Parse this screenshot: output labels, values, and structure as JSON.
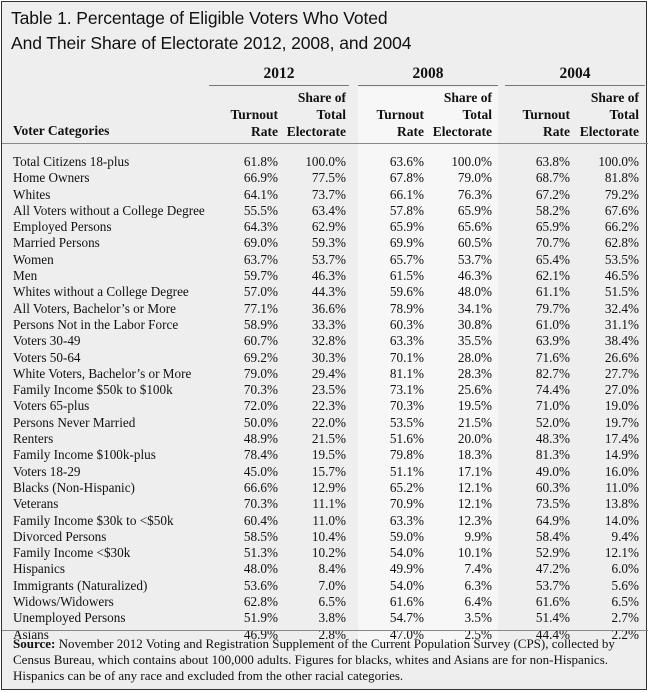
{
  "title": {
    "line1": "Table 1. Percentage of Eligible Voters Who Voted",
    "line2": "And Their Share of Electorate 2012, 2008, and 2004"
  },
  "years": [
    "2012",
    "2008",
    "2004"
  ],
  "col_headers": {
    "turnout_l1": "Turnout",
    "turnout_l2": "Rate",
    "share_l1": "Share of",
    "share_l2": "Total",
    "share_l3": "Electorate",
    "category": "Voter Categories"
  },
  "rows": [
    {
      "cat": "Total Citizens 18-plus",
      "v": [
        "61.8%",
        "100.0%",
        "63.6%",
        "100.0%",
        "63.8%",
        "100.0%"
      ]
    },
    {
      "cat": "Home Owners",
      "v": [
        "66.9%",
        "77.5%",
        "67.8%",
        "79.0%",
        "68.7%",
        "81.8%"
      ]
    },
    {
      "cat": "Whites",
      "v": [
        "64.1%",
        "73.7%",
        "66.1%",
        "76.3%",
        "67.2%",
        "79.2%"
      ]
    },
    {
      "cat": "All Voters without a College Degree",
      "v": [
        "55.5%",
        "63.4%",
        "57.8%",
        "65.9%",
        "58.2%",
        "67.6%"
      ]
    },
    {
      "cat": "Employed Persons",
      "v": [
        "64.3%",
        "62.9%",
        "65.9%",
        "65.6%",
        "65.9%",
        "66.2%"
      ]
    },
    {
      "cat": "Married Persons",
      "v": [
        "69.0%",
        "59.3%",
        "69.9%",
        "60.5%",
        "70.7%",
        "62.8%"
      ]
    },
    {
      "cat": "Women",
      "v": [
        "63.7%",
        "53.7%",
        "65.7%",
        "53.7%",
        "65.4%",
        "53.5%"
      ]
    },
    {
      "cat": "Men",
      "v": [
        "59.7%",
        "46.3%",
        "61.5%",
        "46.3%",
        "62.1%",
        "46.5%"
      ]
    },
    {
      "cat": "Whites without a College Degree",
      "v": [
        "57.0%",
        "44.3%",
        "59.6%",
        "48.0%",
        "61.1%",
        "51.5%"
      ]
    },
    {
      "cat": "All Voters, Bachelor’s or More",
      "v": [
        "77.1%",
        "36.6%",
        "78.9%",
        "34.1%",
        "79.7%",
        "32.4%"
      ]
    },
    {
      "cat": "Persons Not in the Labor Force",
      "v": [
        "58.9%",
        "33.3%",
        "60.3%",
        "30.8%",
        "61.0%",
        "31.1%"
      ]
    },
    {
      "cat": "Voters 30-49",
      "v": [
        "60.7%",
        "32.8%",
        "63.3%",
        "35.5%",
        "63.9%",
        "38.4%"
      ]
    },
    {
      "cat": "Voters 50-64",
      "v": [
        "69.2%",
        "30.3%",
        "70.1%",
        "28.0%",
        "71.6%",
        "26.6%"
      ]
    },
    {
      "cat": "White Voters, Bachelor’s or More",
      "v": [
        "79.0%",
        "29.4%",
        "81.1%",
        "28.3%",
        "82.7%",
        "27.7%"
      ]
    },
    {
      "cat": "Family Income $50k to $100k",
      "v": [
        "70.3%",
        "23.5%",
        "73.1%",
        "25.6%",
        "74.4%",
        "27.0%"
      ]
    },
    {
      "cat": "Voters 65-plus",
      "v": [
        "72.0%",
        "22.3%",
        "70.3%",
        "19.5%",
        "71.0%",
        "19.0%"
      ]
    },
    {
      "cat": "Persons Never Married",
      "v": [
        "50.0%",
        "22.0%",
        "53.5%",
        "21.5%",
        "52.0%",
        "19.7%"
      ]
    },
    {
      "cat": "Renters",
      "v": [
        "48.9%",
        "21.5%",
        "51.6%",
        "20.0%",
        "48.3%",
        "17.4%"
      ]
    },
    {
      "cat": "Family Income $100k-plus",
      "v": [
        "78.4%",
        "19.5%",
        "79.8%",
        "18.3%",
        "81.3%",
        "14.9%"
      ]
    },
    {
      "cat": "Voters 18-29",
      "v": [
        "45.0%",
        "15.7%",
        "51.1%",
        "17.1%",
        "49.0%",
        "16.0%"
      ]
    },
    {
      "cat": "Blacks (Non-Hispanic)",
      "v": [
        "66.6%",
        "12.9%",
        "65.2%",
        "12.1%",
        "60.3%",
        "11.0%"
      ]
    },
    {
      "cat": "Veterans",
      "v": [
        "70.3%",
        "11.1%",
        "70.9%",
        "12.1%",
        "73.5%",
        "13.8%"
      ]
    },
    {
      "cat": "Family Income $30k to <$50k",
      "v": [
        "60.4%",
        "11.0%",
        "63.3%",
        "12.3%",
        "64.9%",
        "14.0%"
      ]
    },
    {
      "cat": "Divorced Persons",
      "v": [
        "58.5%",
        "10.4%",
        "59.0%",
        "9.9%",
        "58.4%",
        "9.4%"
      ]
    },
    {
      "cat": "Family Income <$30k",
      "v": [
        "51.3%",
        "10.2%",
        "54.0%",
        "10.1%",
        "52.9%",
        "12.1%"
      ]
    },
    {
      "cat": "Hispanics",
      "v": [
        "48.0%",
        "8.4%",
        "49.9%",
        "7.4%",
        "47.2%",
        "6.0%"
      ]
    },
    {
      "cat": "Immigrants (Naturalized)",
      "v": [
        "53.6%",
        "7.0%",
        "54.0%",
        "6.3%",
        "53.7%",
        "5.6%"
      ]
    },
    {
      "cat": "Widows/Widowers",
      "v": [
        "62.8%",
        "6.5%",
        "61.6%",
        "6.4%",
        "61.6%",
        "6.5%"
      ]
    },
    {
      "cat": "Unemployed Persons",
      "v": [
        "51.9%",
        "3.8%",
        "54.7%",
        "3.5%",
        "51.4%",
        "2.7%"
      ]
    },
    {
      "cat": "Asians",
      "v": [
        "46.9%",
        "2.8%",
        "47.0%",
        "2.5%",
        "44.4%",
        "2.2%"
      ]
    }
  ],
  "source": {
    "label": "Source:",
    "text": " November 2012 Voting and Registration Supplement of the Current Population Survey (CPS), collected by Census Bureau, which contains about 100,000 adults. Figures for blacks, whites and Asians are for non-Hispanics. Hispanics can be of any race and excluded from the other racial categories."
  }
}
